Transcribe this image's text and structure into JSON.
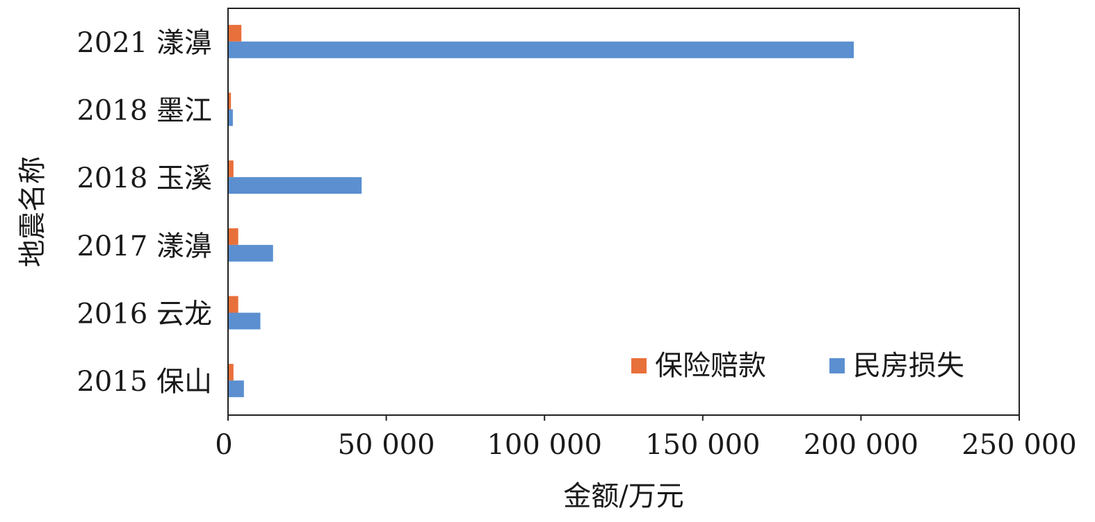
{
  "chart_data": {
    "type": "bar",
    "orientation": "horizontal",
    "categories": [
      "2021 漾濞",
      "2018 墨江",
      "2018 玉溪",
      "2017 漾濞",
      "2016 云龙",
      "2015 保山"
    ],
    "series": [
      {
        "name": "保险赔款",
        "color": "#E8703A",
        "values": [
          4000,
          700,
          1500,
          3000,
          3000,
          1500
        ]
      },
      {
        "name": "民房损失",
        "color": "#5B8FD0",
        "values": [
          197500,
          1300,
          42000,
          14000,
          10000,
          4800
        ]
      }
    ],
    "xlabel": "金额/万元",
    "ylabel": "地震名称",
    "xlim": [
      0,
      250000
    ],
    "xticks": [
      0,
      50000,
      100000,
      150000,
      200000,
      250000
    ],
    "xtick_labels": [
      "0",
      "50 000",
      "100 000",
      "150 000",
      "200 000",
      "250 000"
    ],
    "legend_position": "bottom-right",
    "grid": false
  }
}
